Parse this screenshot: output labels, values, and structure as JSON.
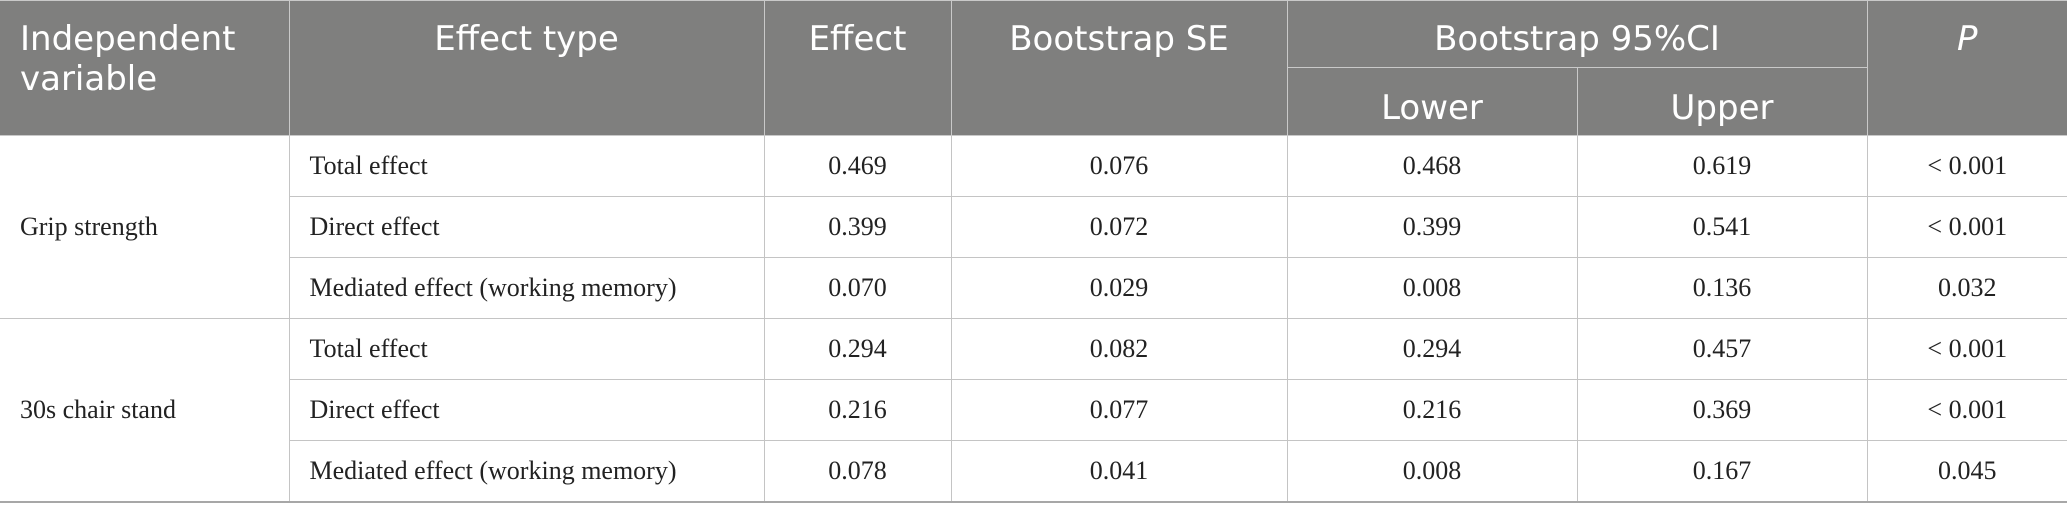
{
  "header": {
    "independent_variable": "Independent variable",
    "effect_type": "Effect type",
    "effect": "Effect",
    "bootstrap_se": "Bootstrap SE",
    "bootstrap_ci": "Bootstrap 95%CI",
    "lower": "Lower",
    "upper": "Upper",
    "p": "P"
  },
  "groups": [
    {
      "name": "Grip strength",
      "rows": [
        {
          "effect_type": "Total effect",
          "effect": "0.469",
          "se": "0.076",
          "lower": "0.468",
          "upper": "0.619",
          "p": "< 0.001"
        },
        {
          "effect_type": "Direct effect",
          "effect": "0.399",
          "se": "0.072",
          "lower": "0.399",
          "upper": "0.541",
          "p": "< 0.001"
        },
        {
          "effect_type": "Mediated effect (working memory)",
          "effect": "0.070",
          "se": "0.029",
          "lower": "0.008",
          "upper": "0.136",
          "p": "0.032"
        }
      ]
    },
    {
      "name": "30s chair stand",
      "rows": [
        {
          "effect_type": "Total effect",
          "effect": "0.294",
          "se": "0.082",
          "lower": "0.294",
          "upper": "0.457",
          "p": "< 0.001"
        },
        {
          "effect_type": "Direct effect",
          "effect": "0.216",
          "se": "0.077",
          "lower": "0.216",
          "upper": "0.369",
          "p": "< 0.001"
        },
        {
          "effect_type": "Mediated effect (working memory)",
          "effect": "0.078",
          "se": "0.041",
          "lower": "0.008",
          "upper": "0.167",
          "p": "0.045"
        }
      ]
    }
  ]
}
